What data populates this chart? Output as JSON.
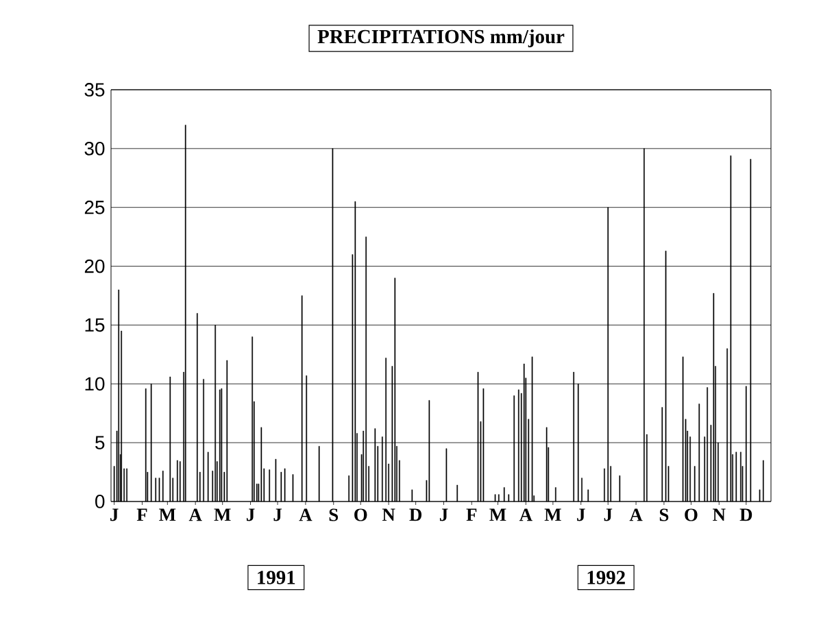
{
  "chart_data": {
    "type": "bar",
    "title": "PRECIPITATIONS    mm/jour",
    "color": "#000000",
    "grid": "y",
    "ylim": [
      0,
      35
    ],
    "yticks": [
      0,
      5,
      10,
      15,
      20,
      25,
      30,
      35
    ],
    "categories": [
      null,
      null,
      null,
      "J",
      null,
      null,
      null,
      null,
      null,
      null,
      null,
      null,
      null,
      null,
      null,
      null,
      null,
      null,
      null,
      null,
      null,
      null,
      null,
      null,
      null,
      null,
      null,
      null,
      null,
      null,
      null,
      null,
      null,
      null,
      "F",
      null,
      null,
      null,
      null,
      null,
      null,
      null,
      null,
      null,
      null,
      null,
      null,
      null,
      null,
      null,
      null,
      null,
      null,
      null,
      null,
      null,
      null,
      null,
      null,
      null,
      null,
      null,
      "M",
      null,
      null,
      null,
      null,
      null,
      null,
      null,
      null,
      null,
      null,
      null,
      null,
      null,
      null,
      null,
      null,
      null,
      null,
      null,
      null,
      null,
      null,
      null,
      null,
      null,
      null,
      null,
      null,
      null,
      null,
      "A",
      null,
      null,
      null,
      null,
      null,
      null,
      null,
      null,
      null,
      null,
      null,
      null,
      null,
      null,
      null,
      null,
      null,
      null,
      null,
      null,
      null,
      null,
      null,
      null,
      null,
      null,
      null,
      null,
      null,
      "M",
      null,
      null,
      null,
      null,
      null,
      null,
      null,
      null,
      null,
      null,
      null,
      null,
      null,
      null,
      null,
      null,
      null,
      null,
      null,
      null,
      null,
      null,
      null,
      null,
      null,
      null,
      null,
      null,
      null,
      null,
      "J",
      null,
      null,
      null,
      null,
      null,
      null,
      null,
      null,
      null,
      null,
      null,
      null,
      null,
      null,
      null,
      null,
      null,
      null,
      null,
      null,
      null,
      null,
      null,
      null,
      null,
      null,
      null,
      null,
      null,
      "J",
      null,
      null,
      null,
      null,
      null,
      null,
      null,
      null,
      null,
      null,
      null,
      null,
      null,
      null,
      null,
      null,
      null,
      null,
      null,
      null,
      null,
      null,
      null,
      null,
      null,
      null,
      null,
      null,
      null,
      null,
      "A",
      null,
      null,
      null,
      null,
      null,
      null,
      null,
      null,
      null,
      null,
      null,
      null,
      null,
      null,
      null,
      null,
      null,
      null,
      null,
      null,
      null,
      null,
      null,
      null,
      null,
      null,
      null,
      null,
      null,
      null,
      "S",
      null,
      null,
      null,
      null,
      null,
      null,
      null,
      null,
      null,
      null,
      null,
      null,
      null,
      null,
      null,
      null,
      null,
      null,
      null,
      null,
      null,
      null,
      null,
      null,
      null,
      null,
      null,
      null,
      null,
      "O",
      null,
      null,
      null,
      null,
      null,
      null,
      null,
      null,
      null,
      null,
      null,
      null,
      null,
      null,
      null,
      null,
      null,
      null,
      null,
      null,
      null,
      null,
      null,
      null,
      null,
      null,
      null,
      null,
      null,
      null,
      "N",
      null,
      null,
      null,
      null,
      null,
      null,
      null,
      null,
      null,
      null,
      null,
      null,
      null,
      null,
      null,
      null,
      null,
      null,
      null,
      null,
      null,
      null,
      null,
      null,
      null,
      null,
      null,
      null,
      null,
      "D",
      null,
      null,
      null,
      null,
      null,
      null,
      null,
      null,
      null,
      null,
      null,
      null,
      null,
      null,
      null,
      null,
      null,
      null,
      null,
      null,
      null,
      null,
      null,
      null,
      null,
      null,
      null,
      null,
      null,
      null,
      "J",
      null,
      null,
      null,
      null,
      null,
      null,
      null,
      null,
      null,
      null,
      null,
      null,
      null,
      null,
      null,
      null,
      null,
      null,
      null,
      null,
      null,
      null,
      null,
      null,
      null,
      null,
      null,
      null,
      null,
      null,
      "F",
      null,
      null,
      null,
      null,
      null,
      null,
      null,
      null,
      null,
      null,
      null,
      null,
      null,
      null,
      null,
      null,
      null,
      null,
      null,
      null,
      null,
      null,
      null,
      null,
      null,
      null,
      null,
      null,
      "M",
      null,
      null,
      null,
      null,
      null,
      null,
      null,
      null,
      null,
      null,
      null,
      null,
      null,
      null,
      null,
      null,
      null,
      null,
      null,
      null,
      null,
      null,
      null,
      null,
      null,
      null,
      null,
      null,
      null,
      null,
      "A",
      null,
      null,
      null,
      null,
      null,
      null,
      null,
      null,
      null,
      null,
      null,
      null,
      null,
      null,
      null,
      null,
      null,
      null,
      null,
      null,
      null,
      null,
      null,
      null,
      null,
      null,
      null,
      null,
      null,
      "M",
      null,
      null,
      null,
      null,
      null,
      null,
      null,
      null,
      null,
      null,
      null,
      null,
      null,
      null,
      null,
      null,
      null,
      null,
      null,
      null,
      null,
      null,
      null,
      null,
      null,
      null,
      null,
      null,
      null,
      null,
      "J",
      null,
      null,
      null,
      null,
      null,
      null,
      null,
      null,
      null,
      null,
      null,
      null,
      null,
      null,
      null,
      null,
      null,
      null,
      null,
      null,
      null,
      null,
      null,
      null,
      null,
      null,
      null,
      null,
      null,
      "J",
      null,
      null,
      null,
      null,
      null,
      null,
      null,
      null,
      null,
      null,
      null,
      null,
      null,
      null,
      null,
      null,
      null,
      null,
      null,
      null,
      null,
      null,
      null,
      null,
      null,
      null,
      null,
      null,
      null,
      null,
      "A",
      null,
      null,
      null,
      null,
      null,
      null,
      null,
      null,
      null,
      null,
      null,
      null,
      null,
      null,
      null,
      null,
      null,
      null,
      null,
      null,
      null,
      null,
      null,
      null,
      null,
      null,
      null,
      null,
      null,
      null,
      "S",
      null,
      null,
      null,
      null,
      null,
      null,
      null,
      null,
      null,
      null,
      null,
      null,
      null,
      null,
      null,
      null,
      null,
      null,
      null,
      null,
      null,
      null,
      null,
      null,
      null,
      null,
      null,
      null,
      null,
      "O",
      null,
      null,
      null,
      null,
      null,
      null,
      null,
      null,
      null,
      null,
      null,
      null,
      null,
      null,
      null,
      null,
      null,
      null,
      null,
      null,
      null,
      null,
      null,
      null,
      null,
      null,
      null,
      null,
      null,
      null,
      "N",
      null,
      null,
      null,
      null,
      null,
      null,
      null,
      null,
      null,
      null,
      null,
      null,
      null,
      null,
      null,
      null,
      null,
      null,
      null,
      null,
      null,
      null,
      null,
      null,
      null,
      null,
      null,
      null,
      null,
      "D",
      null,
      null,
      null,
      null,
      null,
      null,
      null,
      null,
      null,
      null,
      null,
      null,
      null,
      null,
      null,
      null,
      null,
      null,
      null,
      null,
      null,
      null,
      null,
      null,
      null,
      null,
      null
    ],
    "values": [
      null,
      null,
      null,
      3,
      null,
      null,
      6,
      null,
      18,
      null,
      4,
      14.5,
      null,
      null,
      2.8,
      null,
      null,
      2.8,
      null,
      null,
      null,
      null,
      null,
      null,
      null,
      null,
      null,
      null,
      null,
      null,
      null,
      null,
      null,
      null,
      null,
      null,
      null,
      null,
      9.6,
      null,
      2.5,
      null,
      null,
      null,
      10,
      null,
      null,
      null,
      null,
      2,
      null,
      null,
      null,
      2,
      null,
      null,
      null,
      2.6,
      null,
      null,
      null,
      null,
      null,
      null,
      null,
      10.6,
      null,
      null,
      2,
      null,
      null,
      null,
      null,
      3.5,
      null,
      null,
      3.4,
      null,
      null,
      null,
      11,
      null,
      32,
      null,
      null,
      null,
      null,
      null,
      null,
      null,
      null,
      null,
      null,
      null,
      null,
      16,
      null,
      null,
      2.5,
      null,
      null,
      null,
      10.4,
      null,
      null,
      null,
      null,
      4.2,
      null,
      null,
      null,
      null,
      2.6,
      null,
      null,
      15,
      null,
      3.4,
      null,
      null,
      9.5,
      null,
      9.6,
      null,
      null,
      2.5,
      null,
      null,
      12,
      null,
      null,
      null,
      null,
      null,
      null,
      null,
      null,
      null,
      null,
      null,
      null,
      null,
      null,
      null,
      null,
      null,
      null,
      null,
      null,
      null,
      null,
      null,
      null,
      null,
      null,
      null,
      14,
      null,
      8.5,
      null,
      null,
      1.5,
      null,
      1.5,
      null,
      null,
      6.3,
      null,
      null,
      2.8,
      null,
      null,
      null,
      null,
      null,
      2.7,
      null,
      null,
      null,
      null,
      null,
      null,
      3.6,
      null,
      null,
      null,
      null,
      null,
      2.5,
      null,
      null,
      null,
      2.8,
      null,
      null,
      null,
      null,
      null,
      null,
      null,
      null,
      2.3,
      null,
      null,
      null,
      null,
      null,
      null,
      null,
      null,
      null,
      17.5,
      null,
      null,
      null,
      null,
      10.7,
      null,
      null,
      null,
      null,
      null,
      null,
      null,
      null,
      null,
      null,
      null,
      null,
      null,
      4.7,
      null,
      null,
      null,
      null,
      null,
      null,
      null,
      null,
      null,
      null,
      null,
      null,
      null,
      null,
      30,
      null,
      null,
      null,
      null,
      null,
      null,
      null,
      null,
      null,
      null,
      null,
      null,
      null,
      null,
      null,
      null,
      null,
      2.2,
      null,
      null,
      null,
      21,
      null,
      null,
      25.5,
      null,
      5.8,
      null,
      null,
      null,
      null,
      4,
      null,
      6,
      null,
      null,
      22.5,
      null,
      null,
      3,
      null,
      null,
      null,
      null,
      null,
      null,
      6.2,
      null,
      null,
      4.7,
      null,
      null,
      null,
      null,
      5.5,
      null,
      null,
      null,
      12.2,
      null,
      null,
      3.2,
      null,
      null,
      null,
      11.5,
      null,
      null,
      19,
      null,
      4.7,
      null,
      null,
      3.5,
      null,
      null,
      null,
      null,
      null,
      null,
      null,
      null,
      null,
      null,
      null,
      null,
      null,
      1,
      null,
      null,
      null,
      null,
      null,
      null,
      null,
      null,
      null,
      null,
      null,
      null,
      null,
      null,
      null,
      1.8,
      null,
      null,
      8.6,
      null,
      null,
      null,
      null,
      null,
      null,
      null,
      null,
      null,
      null,
      null,
      null,
      null,
      null,
      null,
      null,
      null,
      null,
      4.5,
      null,
      null,
      null,
      null,
      null,
      null,
      null,
      null,
      null,
      null,
      null,
      1.4,
      null,
      null,
      null,
      null,
      null,
      null,
      null,
      null,
      null,
      null,
      null,
      null,
      null,
      null,
      null,
      null,
      null,
      null,
      null,
      null,
      null,
      null,
      11,
      null,
      null,
      6.8,
      null,
      null,
      9.6,
      null,
      null,
      null,
      null,
      null,
      null,
      null,
      null,
      null,
      null,
      null,
      null,
      0.6,
      null,
      null,
      null,
      0.6,
      null,
      null,
      null,
      null,
      null,
      1.2,
      null,
      null,
      null,
      null,
      0.6,
      null,
      null,
      null,
      null,
      null,
      9,
      null,
      null,
      null,
      null,
      9.5,
      null,
      null,
      9.2,
      null,
      null,
      11.7,
      null,
      10.5,
      null,
      null,
      7,
      null,
      null,
      null,
      12.3,
      null,
      0.5,
      null,
      null,
      null,
      null,
      null,
      null,
      null,
      null,
      null,
      null,
      null,
      null,
      null,
      6.3,
      null,
      4.6,
      null,
      null,
      null,
      null,
      null,
      null,
      null,
      1.2,
      null,
      null,
      null,
      null,
      null,
      null,
      null,
      null,
      null,
      null,
      null,
      null,
      null,
      null,
      null,
      null,
      null,
      null,
      null,
      11,
      null,
      null,
      null,
      null,
      10,
      null,
      null,
      null,
      2,
      null,
      null,
      null,
      null,
      null,
      null,
      1,
      null,
      null,
      null,
      null,
      null,
      null,
      null,
      null,
      null,
      null,
      null,
      null,
      null,
      null,
      null,
      null,
      null,
      2.8,
      null,
      null,
      null,
      25,
      null,
      null,
      3,
      null,
      null,
      null,
      null,
      null,
      null,
      null,
      null,
      null,
      2.2,
      null,
      null,
      null,
      null,
      null,
      null,
      null,
      null,
      null,
      null,
      null,
      null,
      null,
      null,
      null,
      null,
      null,
      null,
      null,
      null,
      null,
      null,
      null,
      null,
      null,
      null,
      30,
      null,
      null,
      5.7,
      null,
      null,
      null,
      null,
      null,
      null,
      null,
      null,
      null,
      null,
      null,
      null,
      null,
      null,
      null,
      null,
      8,
      null,
      null,
      null,
      21.3,
      null,
      null,
      3,
      null,
      null,
      null,
      null,
      null,
      null,
      null,
      null,
      null,
      null,
      null,
      null,
      null,
      null,
      null,
      12.3,
      null,
      null,
      7,
      null,
      6,
      null,
      null,
      5.5,
      null,
      null,
      null,
      null,
      3,
      null,
      null,
      null,
      null,
      8.3,
      null,
      null,
      null,
      null,
      null,
      5.5,
      null,
      null,
      9.7,
      null,
      null,
      null,
      6.5,
      null,
      null,
      17.7,
      null,
      11.5,
      null,
      null,
      5,
      null,
      null,
      null,
      null,
      null,
      null,
      null,
      null,
      null,
      13,
      null,
      null,
      null,
      29.4,
      null,
      4,
      null,
      null,
      null,
      4.2,
      null,
      null,
      null,
      null,
      4.2,
      null,
      3,
      null,
      null,
      null,
      9.8,
      null,
      null,
      null,
      null,
      29.1,
      null,
      null,
      null,
      null,
      null,
      null,
      null,
      null,
      null,
      1,
      null,
      null,
      null,
      3.5,
      null,
      null,
      null,
      null,
      null,
      null,
      null,
      null
    ],
    "annotations": [
      "1991",
      "1992"
    ]
  }
}
